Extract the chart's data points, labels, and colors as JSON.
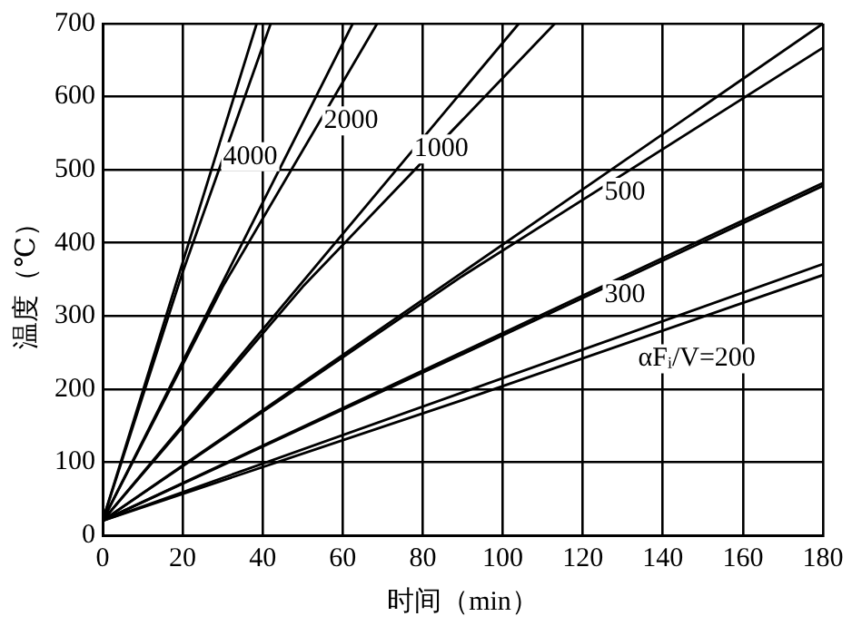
{
  "chart_data": {
    "type": "line",
    "xlabel": "时间（min）",
    "ylabel": "温度（℃）",
    "xlim": [
      0,
      180
    ],
    "xticks": [
      0,
      20,
      40,
      60,
      80,
      100,
      120,
      140,
      160,
      180
    ],
    "ylim": [
      0,
      700
    ],
    "yticks": [
      0,
      100,
      200,
      300,
      400,
      500,
      600,
      700
    ],
    "grid": true,
    "legend": false,
    "marker": "none",
    "line_style": "solid",
    "series": [
      {
        "color": "#000000",
        "x": [
          0,
          38.5
        ],
        "values": [
          20,
          700
        ]
      },
      {
        "color": "#000000",
        "x": [
          0,
          20,
          42
        ],
        "values": [
          20,
          360,
          700
        ]
      },
      {
        "color": "#000000",
        "x": [
          0,
          62.5
        ],
        "values": [
          20,
          700
        ]
      },
      {
        "color": "#000000",
        "x": [
          0,
          30,
          68.6
        ],
        "values": [
          20,
          340,
          700
        ]
      },
      {
        "color": "#000000",
        "x": [
          0,
          104
        ],
        "values": [
          20,
          700
        ]
      },
      {
        "color": "#000000",
        "x": [
          0,
          50,
          113
        ],
        "values": [
          20,
          340,
          700
        ]
      },
      {
        "color": "#000000",
        "x": [
          0,
          180
        ],
        "values": [
          20,
          700
        ]
      },
      {
        "color": "#000000",
        "x": [
          0,
          90,
          180
        ],
        "values": [
          20,
          355,
          667
        ]
      },
      {
        "color": "#000000",
        "x": [
          0,
          180
        ],
        "values": [
          20,
          482
        ]
      },
      {
        "color": "#000000",
        "x": [
          0,
          90,
          180
        ],
        "values": [
          20,
          248,
          478
        ]
      },
      {
        "color": "#000000",
        "x": [
          0,
          180
        ],
        "values": [
          20,
          371
        ]
      },
      {
        "color": "#000000",
        "x": [
          0,
          90,
          180
        ],
        "values": [
          20,
          185,
          356
        ]
      }
    ],
    "annotations": [
      "4000",
      "2000",
      "1000",
      "500",
      "300",
      "αFᵢ/V=200"
    ]
  }
}
